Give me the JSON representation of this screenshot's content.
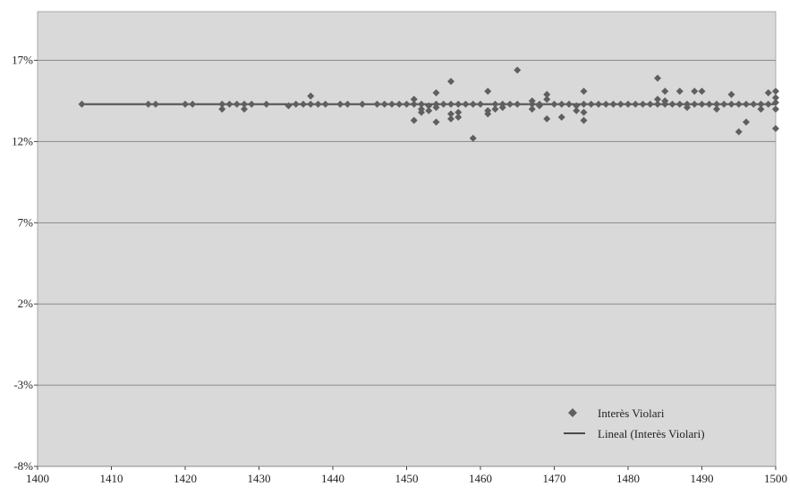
{
  "chart_data": {
    "type": "scatter",
    "title": "",
    "xlabel": "",
    "ylabel": "",
    "xlim": [
      1400,
      1500
    ],
    "ylim": [
      -8,
      20
    ],
    "x_ticks": [
      1400,
      1410,
      1420,
      1430,
      1440,
      1450,
      1460,
      1470,
      1480,
      1490,
      1500
    ],
    "x_tick_labels": [
      "1400",
      "1410",
      "1420",
      "1430",
      "1440",
      "1450",
      "1460",
      "1470",
      "1480",
      "1490",
      "1500"
    ],
    "y_ticks": [
      -8,
      -3,
      2,
      7,
      12,
      17
    ],
    "y_tick_labels": [
      "-8%",
      "-3%",
      "2%",
      "7%",
      "12%",
      "17%"
    ],
    "grid": true,
    "legend_position": "bottom-right",
    "colors": {
      "plot_bg": "#d9d9d9",
      "grid": "#8a8a8a",
      "marker": "#5f5f5f",
      "line": "#4a4a4a"
    },
    "series": [
      {
        "name": "Interès Violari",
        "kind": "points",
        "marker": "diamond",
        "points": [
          [
            1406,
            14.3
          ],
          [
            1415,
            14.3
          ],
          [
            1416,
            14.3
          ],
          [
            1420,
            14.3
          ],
          [
            1421,
            14.3
          ],
          [
            1425,
            14.0
          ],
          [
            1425,
            14.3
          ],
          [
            1426,
            14.3
          ],
          [
            1427,
            14.3
          ],
          [
            1428,
            14.0
          ],
          [
            1428,
            14.3
          ],
          [
            1429,
            14.3
          ],
          [
            1431,
            14.3
          ],
          [
            1434,
            14.2
          ],
          [
            1435,
            14.3
          ],
          [
            1436,
            14.3
          ],
          [
            1437,
            14.8
          ],
          [
            1437,
            14.3
          ],
          [
            1438,
            14.3
          ],
          [
            1439,
            14.3
          ],
          [
            1441,
            14.3
          ],
          [
            1442,
            14.3
          ],
          [
            1444,
            14.3
          ],
          [
            1446,
            14.3
          ],
          [
            1447,
            14.3
          ],
          [
            1448,
            14.3
          ],
          [
            1449,
            14.3
          ],
          [
            1450,
            14.3
          ],
          [
            1451,
            13.3
          ],
          [
            1451,
            14.6
          ],
          [
            1451,
            14.3
          ],
          [
            1452,
            13.8
          ],
          [
            1452,
            14.0
          ],
          [
            1452,
            14.3
          ],
          [
            1453,
            13.9
          ],
          [
            1453,
            14.2
          ],
          [
            1454,
            13.2
          ],
          [
            1454,
            14.1
          ],
          [
            1454,
            14.3
          ],
          [
            1454,
            15.0
          ],
          [
            1455,
            14.3
          ],
          [
            1456,
            13.4
          ],
          [
            1456,
            13.7
          ],
          [
            1456,
            15.7
          ],
          [
            1456,
            14.3
          ],
          [
            1457,
            13.5
          ],
          [
            1457,
            13.8
          ],
          [
            1457,
            14.3
          ],
          [
            1458,
            14.3
          ],
          [
            1459,
            12.2
          ],
          [
            1459,
            14.3
          ],
          [
            1460,
            14.3
          ],
          [
            1461,
            13.7
          ],
          [
            1461,
            13.9
          ],
          [
            1461,
            15.1
          ],
          [
            1462,
            14.0
          ],
          [
            1462,
            14.3
          ],
          [
            1463,
            14.1
          ],
          [
            1463,
            14.3
          ],
          [
            1464,
            14.3
          ],
          [
            1465,
            16.4
          ],
          [
            1465,
            14.3
          ],
          [
            1467,
            14.0
          ],
          [
            1467,
            14.5
          ],
          [
            1467,
            14.3
          ],
          [
            1468,
            14.2
          ],
          [
            1468,
            14.3
          ],
          [
            1469,
            13.4
          ],
          [
            1469,
            14.6
          ],
          [
            1469,
            14.9
          ],
          [
            1470,
            14.3
          ],
          [
            1471,
            13.5
          ],
          [
            1471,
            14.3
          ],
          [
            1472,
            14.3
          ],
          [
            1473,
            13.9
          ],
          [
            1473,
            14.2
          ],
          [
            1474,
            13.3
          ],
          [
            1474,
            13.8
          ],
          [
            1474,
            15.1
          ],
          [
            1474,
            14.3
          ],
          [
            1475,
            14.3
          ],
          [
            1476,
            14.3
          ],
          [
            1477,
            14.3
          ],
          [
            1478,
            14.3
          ],
          [
            1479,
            14.3
          ],
          [
            1480,
            14.3
          ],
          [
            1481,
            14.3
          ],
          [
            1482,
            14.3
          ],
          [
            1483,
            14.3
          ],
          [
            1484,
            14.6
          ],
          [
            1484,
            15.9
          ],
          [
            1484,
            14.3
          ],
          [
            1485,
            14.5
          ],
          [
            1485,
            15.1
          ],
          [
            1485,
            14.3
          ],
          [
            1486,
            14.3
          ],
          [
            1487,
            15.1
          ],
          [
            1487,
            14.3
          ],
          [
            1488,
            14.1
          ],
          [
            1488,
            14.3
          ],
          [
            1489,
            15.1
          ],
          [
            1489,
            14.3
          ],
          [
            1490,
            15.1
          ],
          [
            1490,
            14.3
          ],
          [
            1491,
            14.3
          ],
          [
            1492,
            14.0
          ],
          [
            1492,
            14.3
          ],
          [
            1493,
            14.3
          ],
          [
            1494,
            14.9
          ],
          [
            1494,
            14.3
          ],
          [
            1495,
            12.6
          ],
          [
            1495,
            14.3
          ],
          [
            1496,
            13.2
          ],
          [
            1496,
            14.3
          ],
          [
            1497,
            14.3
          ],
          [
            1498,
            14.0
          ],
          [
            1498,
            14.3
          ],
          [
            1499,
            15.0
          ],
          [
            1499,
            14.3
          ],
          [
            1500,
            12.8
          ],
          [
            1500,
            14.0
          ],
          [
            1500,
            14.4
          ],
          [
            1500,
            15.1
          ],
          [
            1500,
            14.7
          ]
        ]
      },
      {
        "name": "Lineal (Interès Violari)",
        "kind": "line",
        "x": [
          1406,
          1500
        ],
        "y": [
          14.3,
          14.3
        ]
      }
    ]
  }
}
